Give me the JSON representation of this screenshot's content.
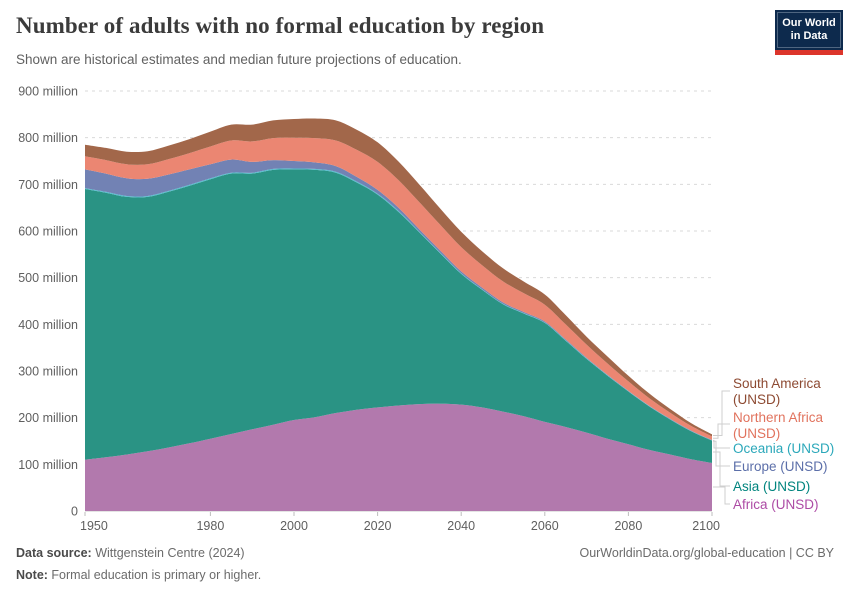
{
  "header": {
    "title": "Number of adults with no formal education by region",
    "subtitle": "Shown are historical estimates and median future projections of education.",
    "logo_line1": "Our World",
    "logo_line2": "in Data",
    "logo_bg": "#0d2a4d",
    "logo_bar": "#dc352b"
  },
  "chart_data": {
    "type": "area",
    "stacked": true,
    "title": "Number of adults with no formal education by region",
    "unit": "million",
    "ylim": [
      0,
      900
    ],
    "grid": true,
    "x": [
      1950,
      1955,
      1960,
      1965,
      1970,
      1975,
      1980,
      1985,
      1990,
      1995,
      2000,
      2005,
      2010,
      2015,
      2020,
      2025,
      2030,
      2035,
      2040,
      2045,
      2050,
      2055,
      2060,
      2065,
      2070,
      2075,
      2080,
      2085,
      2090,
      2095,
      2100
    ],
    "x_ticks": [
      "1950",
      "1980",
      "2000",
      "2020",
      "2040",
      "2060",
      "2080",
      "2100"
    ],
    "y_ticks": [
      {
        "value": 900,
        "label": "900 million"
      },
      {
        "value": 800,
        "label": "800 million"
      },
      {
        "value": 700,
        "label": "700 million"
      },
      {
        "value": 600,
        "label": "600 million"
      },
      {
        "value": 500,
        "label": "500 million"
      },
      {
        "value": 400,
        "label": "400 million"
      },
      {
        "value": 300,
        "label": "300 million"
      },
      {
        "value": 200,
        "label": "200 million"
      },
      {
        "value": 100,
        "label": "100 million"
      },
      {
        "value": 0,
        "label": "0"
      }
    ],
    "series": [
      {
        "id": "africa",
        "name": "Africa (UNSD)",
        "fill": "#b279ad",
        "text_color": "#ad4ba5",
        "values": [
          110,
          115,
          121,
          128,
          136,
          145,
          155,
          165,
          175,
          185,
          195,
          201,
          210,
          217,
          222,
          226,
          229,
          230,
          228,
          222,
          213,
          203,
          191,
          180,
          168,
          155,
          143,
          131,
          121,
          111,
          103
        ]
      },
      {
        "id": "asia",
        "name": "Asia (UNSD)",
        "fill": "#2a9384",
        "text_color": "#00847e",
        "values": [
          580,
          567,
          552,
          545,
          548,
          552,
          556,
          558,
          548,
          546,
          537,
          530,
          515,
          487,
          456,
          415,
          368,
          322,
          280,
          252,
          230,
          220,
          212,
          185,
          158,
          135,
          113,
          93,
          75,
          60,
          48
        ]
      },
      {
        "id": "oceania",
        "name": "Oceania (UNSD)",
        "fill": "#54bcce",
        "text_color": "#2ba8ba",
        "values": [
          2,
          2,
          2,
          2,
          2,
          2,
          2,
          2,
          2,
          2,
          2,
          2,
          2,
          2,
          2,
          2,
          1.5,
          1.5,
          1.5,
          1.2,
          1,
          1,
          1,
          1,
          1,
          0.8,
          0.7,
          0.7,
          0.6,
          0.5,
          0.5
        ]
      },
      {
        "id": "europe",
        "name": "Europe (UNSD)",
        "fill": "#7282b4",
        "text_color": "#5c6fa9",
        "values": [
          40,
          39,
          38,
          37,
          35,
          33,
          30,
          28,
          23,
          19,
          16,
          14,
          12,
          10,
          8,
          7,
          5,
          4.5,
          4,
          3.5,
          3,
          2.5,
          2,
          1.8,
          1.5,
          1.2,
          1,
          1,
          1,
          0.9,
          0.8
        ]
      },
      {
        "id": "northern-africa",
        "name": "Northern Africa (UNSD)",
        "fill": "#eb8672",
        "text_color": "#e1735e",
        "values": [
          28,
          29,
          30,
          31,
          33,
          35,
          38,
          41,
          44,
          47,
          50,
          52,
          55,
          58,
          60,
          59,
          58,
          55,
          52,
          48,
          45,
          40,
          36,
          32,
          28,
          24,
          20,
          16,
          13,
          10,
          7.5
        ]
      },
      {
        "id": "south-america",
        "name": "South America (UNSD)",
        "fill": "#a2674a",
        "text_color": "#8d4a32",
        "values": [
          25,
          26,
          27,
          28,
          29,
          30,
          32,
          34,
          36,
          38,
          40,
          42,
          43,
          43,
          42,
          40,
          38,
          35,
          33,
          30,
          28,
          25,
          22,
          20,
          17,
          15,
          12,
          10,
          8,
          6,
          4.5
        ]
      }
    ],
    "legend_order_top_to_bottom": [
      "south-america",
      "northern-africa",
      "oceania",
      "europe",
      "asia",
      "africa"
    ]
  },
  "footer": {
    "data_source_label": "Data source:",
    "data_source_text": " Wittgenstein Centre (2024)",
    "note_label": "Note:",
    "note_text": " Formal education is primary or higher.",
    "link": "OurWorldinData.org/global-education | CC BY"
  }
}
